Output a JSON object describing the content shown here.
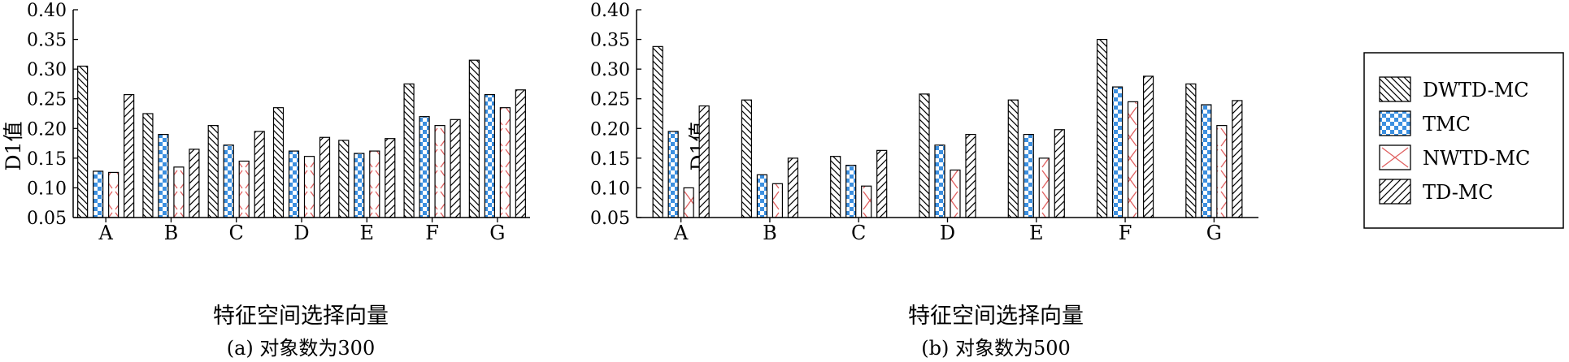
{
  "chart_data": [
    {
      "type": "bar",
      "caption": "(a) 对象数为300",
      "xlabel": "特征空间选择向量",
      "ylabel": "D1值",
      "ylim": [
        0.05,
        0.4
      ],
      "yticks": [
        "0.05",
        "0.10",
        "0.15",
        "0.20",
        "0.25",
        "0.30",
        "0.35",
        "0.40"
      ],
      "categories": [
        "A",
        "B",
        "C",
        "D",
        "E",
        "F",
        "G"
      ],
      "series": [
        {
          "name": "DWTD-MC",
          "values": [
            0.305,
            0.225,
            0.205,
            0.235,
            0.18,
            0.275,
            0.315
          ]
        },
        {
          "name": "TMC",
          "values": [
            0.128,
            0.19,
            0.172,
            0.162,
            0.158,
            0.22,
            0.257
          ]
        },
        {
          "name": "NWTD-MC",
          "values": [
            0.126,
            0.135,
            0.145,
            0.153,
            0.162,
            0.205,
            0.235
          ]
        },
        {
          "name": "TD-MC",
          "values": [
            0.257,
            0.165,
            0.195,
            0.185,
            0.183,
            0.215,
            0.265
          ]
        }
      ]
    },
    {
      "type": "bar",
      "caption": "(b) 对象数为500",
      "xlabel": "特征空间选择向量",
      "ylabel": "D1值",
      "ylim": [
        0.05,
        0.4
      ],
      "yticks": [
        "0.05",
        "0.10",
        "0.15",
        "0.20",
        "0.25",
        "0.30",
        "0.35",
        "0.40"
      ],
      "categories": [
        "A",
        "B",
        "C",
        "D",
        "E",
        "F",
        "G"
      ],
      "series": [
        {
          "name": "DWTD-MC",
          "values": [
            0.338,
            0.248,
            0.153,
            0.258,
            0.248,
            0.35,
            0.275
          ]
        },
        {
          "name": "TMC",
          "values": [
            0.195,
            0.122,
            0.138,
            0.172,
            0.19,
            0.27,
            0.24
          ]
        },
        {
          "name": "NWTD-MC",
          "values": [
            0.1,
            0.107,
            0.103,
            0.13,
            0.15,
            0.245,
            0.205
          ]
        },
        {
          "name": "TD-MC",
          "values": [
            0.238,
            0.15,
            0.163,
            0.19,
            0.198,
            0.288,
            0.247
          ]
        }
      ]
    }
  ],
  "legend": {
    "placement": "right",
    "entries": [
      "DWTD-MC",
      "TMC",
      "NWTD-MC",
      "TD-MC"
    ]
  },
  "colors": {
    "tmc_check": "#3b8fe0",
    "nwtd_cross": "#e06060",
    "hatch": "#000000"
  }
}
